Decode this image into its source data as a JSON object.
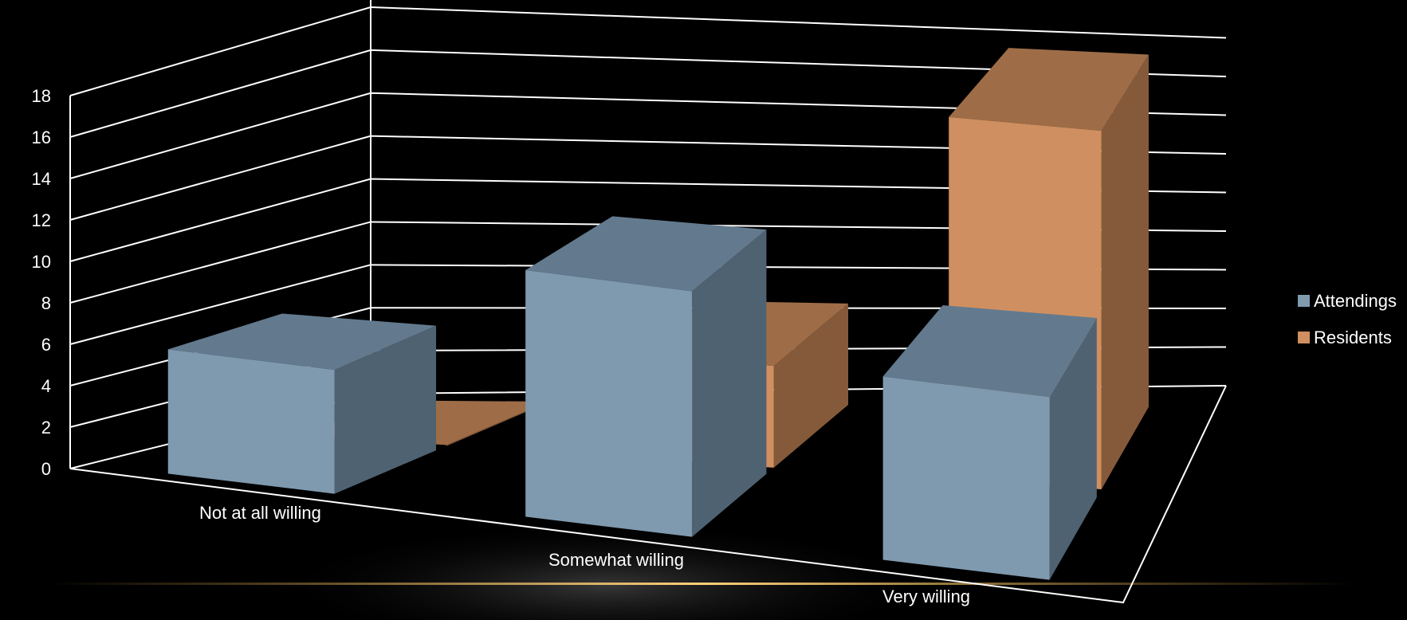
{
  "chart_data": {
    "type": "bar",
    "title": "",
    "xlabel": "",
    "ylabel": "",
    "categories": [
      "Not at all willing",
      "Somewhat willing",
      "Very willing"
    ],
    "series": [
      {
        "name": "Attendings",
        "values": [
          6,
          12,
          9
        ]
      },
      {
        "name": "Residents",
        "values": [
          0,
          5,
          18
        ]
      }
    ],
    "ylim": [
      0,
      18
    ],
    "yticks": [
      "0",
      "2",
      "4",
      "6",
      "8",
      "10",
      "12",
      "14",
      "16",
      "18"
    ],
    "grid": true,
    "legend": "right",
    "colors": {
      "Attendings": {
        "front": "#7f9aaf",
        "top": "#637a8e",
        "side": "#4f6272"
      },
      "Residents": {
        "front": "#d08f60",
        "top": "#9e6d47",
        "side": "#855a3b"
      },
      "background": "#000000",
      "glow": "#d9a441"
    }
  }
}
